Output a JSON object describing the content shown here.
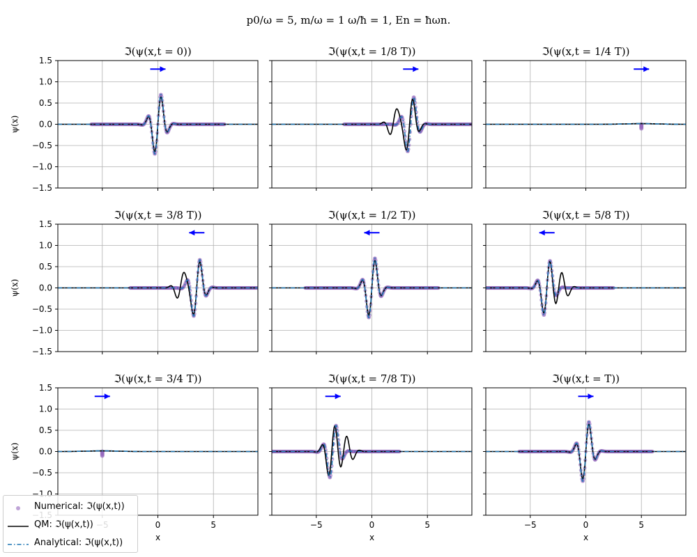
{
  "figure": {
    "title": "p0/ω = 5,  m/ω = 1  ω/ħ = 1, En = ħωn."
  },
  "colors": {
    "numerical": "#9467bd",
    "qm": "#000000",
    "analytical": "#1f77b4",
    "arrow": "#0000ff",
    "grid": "#b0b0b0"
  },
  "legend": {
    "numerical": "Numerical: ℑ(ψ(x,t))",
    "qm": "QM: ℑ(ψ(x,t))",
    "analytical": "Analytical: ℑ(ψ(x,t))"
  },
  "chart_data": [
    {
      "type": "line",
      "title": "ℑ(ψ(x,t = 0))",
      "ylabel": "ψ(x)",
      "xlabel": "",
      "center": 0.0,
      "qm_center": 0.0,
      "amplitude": 0.82,
      "arrow": "right",
      "collapsed": false,
      "xlim": [
        -9,
        9
      ],
      "ylim": [
        -1.5,
        1.5
      ],
      "xticks": [
        -5,
        0,
        5
      ],
      "yticks": [
        -1.5,
        -1.0,
        -0.5,
        0.0,
        0.5,
        1.0,
        1.5
      ],
      "grid": true
    },
    {
      "type": "line",
      "title": "ℑ(ψ(x,t = 1/8 T))",
      "ylabel": "",
      "xlabel": "",
      "center": 3.5,
      "qm_center": 3.4,
      "amplitude": 0.75,
      "arrow": "right",
      "collapsed": false,
      "xlim": [
        -9,
        9
      ],
      "ylim": [
        -1.5,
        1.5
      ],
      "xticks": [
        -5,
        0,
        5
      ],
      "yticks": [
        -1.5,
        -1.0,
        -0.5,
        0.0,
        0.5,
        1.0,
        1.5
      ],
      "grid": true
    },
    {
      "type": "line",
      "title": "ℑ(ψ(x,t = 1/4 T))",
      "ylabel": "",
      "xlabel": "",
      "center": 5.0,
      "qm_center": 5.0,
      "amplitude": 0.0,
      "arrow": "right",
      "collapsed": true,
      "xlim": [
        -9,
        9
      ],
      "ylim": [
        -1.5,
        1.5
      ],
      "xticks": [
        -5,
        0,
        5
      ],
      "yticks": [
        -1.5,
        -1.0,
        -0.5,
        0.0,
        0.5,
        1.0,
        1.5
      ],
      "grid": true
    },
    {
      "type": "line",
      "title": "ℑ(ψ(x,t = 3/8 T))",
      "ylabel": "ψ(x)",
      "xlabel": "",
      "center": 3.5,
      "qm_center": 3.5,
      "amplitude": 0.78,
      "arrow": "left",
      "collapsed": false,
      "xlim": [
        -9,
        9
      ],
      "ylim": [
        -1.5,
        1.5
      ],
      "xticks": [
        -5,
        0,
        5
      ],
      "yticks": [
        -1.5,
        -1.0,
        -0.5,
        0.0,
        0.5,
        1.0,
        1.5
      ],
      "grid": true
    },
    {
      "type": "line",
      "title": "ℑ(ψ(x,t = 1/2 T))",
      "ylabel": "",
      "xlabel": "",
      "center": 0.0,
      "qm_center": 0.0,
      "amplitude": 0.82,
      "arrow": "left",
      "collapsed": false,
      "xlim": [
        -9,
        9
      ],
      "ylim": [
        -1.5,
        1.5
      ],
      "xticks": [
        -5,
        0,
        5
      ],
      "yticks": [
        -1.5,
        -1.0,
        -0.5,
        0.0,
        0.5,
        1.0,
        1.5
      ],
      "grid": true
    },
    {
      "type": "line",
      "title": "ℑ(ψ(x,t = 5/8 T))",
      "ylabel": "",
      "xlabel": "",
      "center": -3.5,
      "qm_center": -3.5,
      "amplitude": 0.75,
      "arrow": "left",
      "collapsed": false,
      "xlim": [
        -9,
        9
      ],
      "ylim": [
        -1.5,
        1.5
      ],
      "xticks": [
        -5,
        0,
        5
      ],
      "yticks": [
        -1.5,
        -1.0,
        -0.5,
        0.0,
        0.5,
        1.0,
        1.5
      ],
      "grid": true
    },
    {
      "type": "line",
      "title": "ℑ(ψ(x,t = 3/4 T))",
      "ylabel": "ψ(x)",
      "xlabel": "x",
      "center": -5.0,
      "qm_center": -5.0,
      "amplitude": 0.0,
      "arrow": "right",
      "collapsed": true,
      "xlim": [
        -9,
        9
      ],
      "ylim": [
        -1.5,
        1.5
      ],
      "xticks": [
        -5,
        0,
        5
      ],
      "yticks": [
        -1.5,
        -1.0,
        -0.5,
        0.0,
        0.5,
        1.0,
        1.5
      ],
      "grid": true
    },
    {
      "type": "line",
      "title": "ℑ(ψ(x,t = 7/8 T))",
      "ylabel": "",
      "xlabel": "x",
      "center": -3.5,
      "qm_center": -3.6,
      "amplitude": 0.72,
      "arrow": "right",
      "collapsed": false,
      "xlim": [
        -9,
        9
      ],
      "ylim": [
        -1.5,
        1.5
      ],
      "xticks": [
        -5,
        0,
        5
      ],
      "yticks": [
        -1.5,
        -1.0,
        -0.5,
        0.0,
        0.5,
        1.0,
        1.5
      ],
      "grid": true
    },
    {
      "type": "line",
      "title": "ℑ(ψ(x,t = T))",
      "ylabel": "",
      "xlabel": "x",
      "center": 0.0,
      "qm_center": 0.0,
      "amplitude": 0.82,
      "arrow": "right",
      "collapsed": false,
      "xlim": [
        -9,
        9
      ],
      "ylim": [
        -1.5,
        1.5
      ],
      "xticks": [
        -5,
        0,
        5
      ],
      "yticks": [
        -1.5,
        -1.0,
        -0.5,
        0.0,
        0.5,
        1.0,
        1.5
      ],
      "grid": true
    }
  ]
}
